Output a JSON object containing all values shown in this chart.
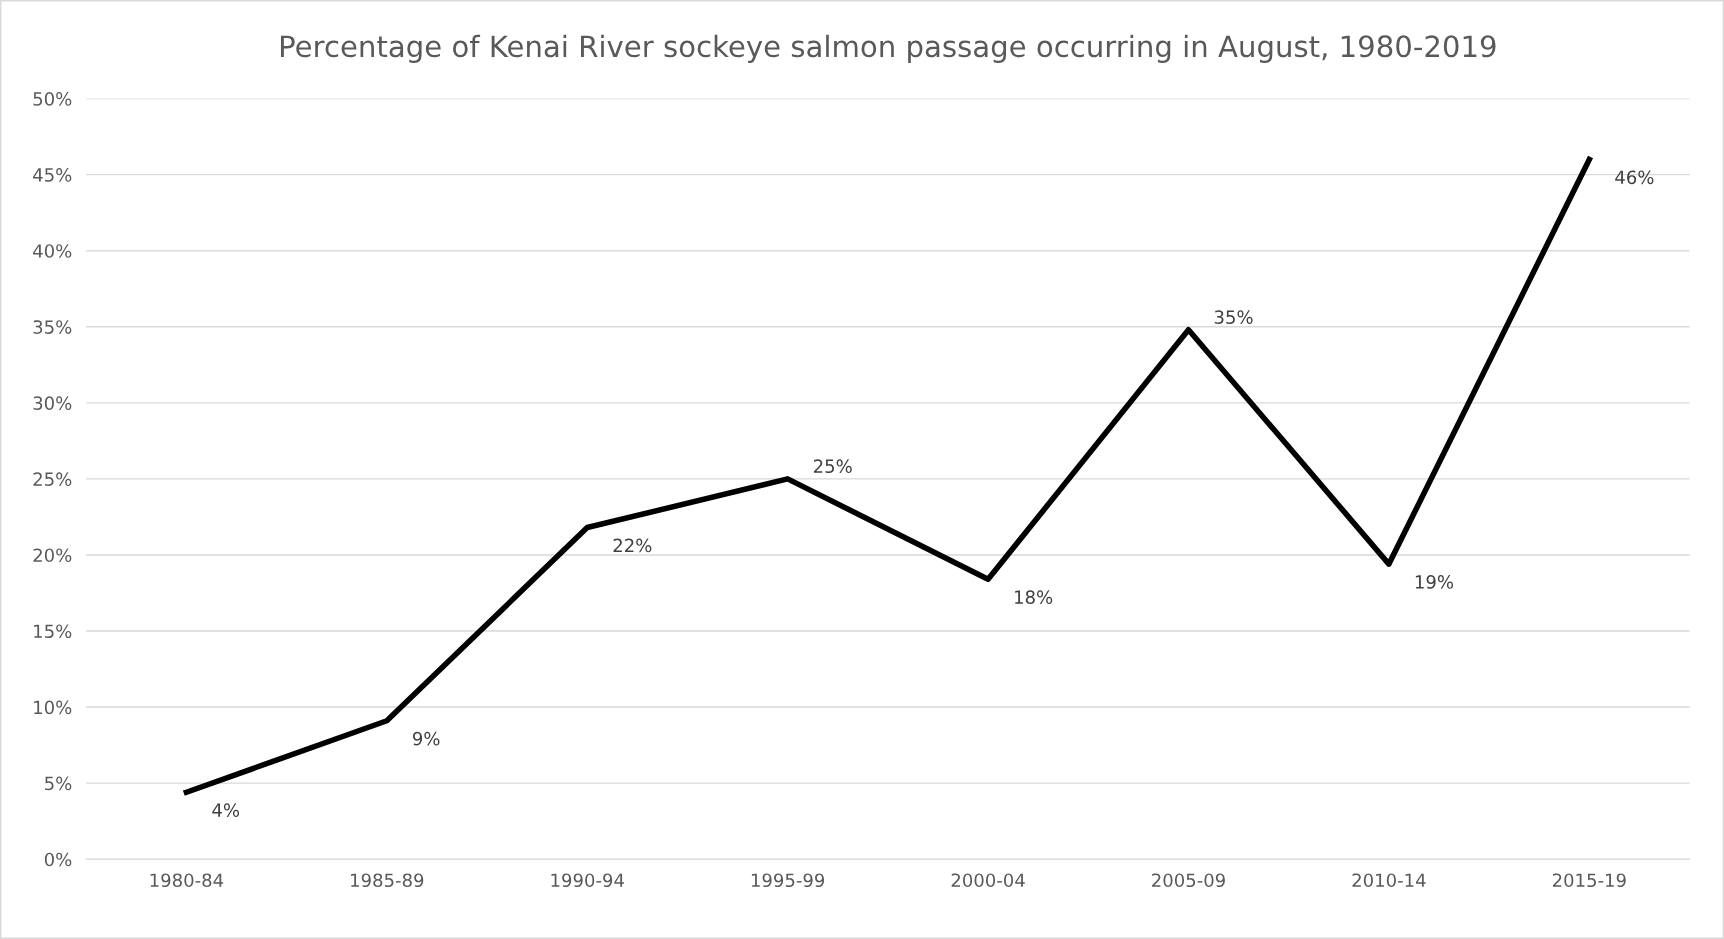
{
  "chart_data": {
    "type": "line",
    "title": "Percentage of Kenai River sockeye salmon passage occurring in August, 1980-2019",
    "categories": [
      "1980-84",
      "1985-89",
      "1990-94",
      "1995-99",
      "2000-04",
      "2005-09",
      "2010-14",
      "2015-19"
    ],
    "series": [
      {
        "color": "#000000",
        "values": [
          4.4,
          9.1,
          21.8,
          25.0,
          18.4,
          34.8,
          19.4,
          46.0
        ],
        "value_labels": [
          "4%",
          "9%",
          "22%",
          "25%",
          "18%",
          "35%",
          "19%",
          "46%"
        ]
      }
    ],
    "ylim": [
      0,
      50
    ],
    "yticks": [
      {
        "value": 0,
        "label": "0%"
      },
      {
        "value": 5,
        "label": "5%"
      },
      {
        "value": 10,
        "label": "10%"
      },
      {
        "value": 15,
        "label": "15%"
      },
      {
        "value": 20,
        "label": "20%"
      },
      {
        "value": 25,
        "label": "25%"
      },
      {
        "value": 30,
        "label": "30%"
      },
      {
        "value": 35,
        "label": "35%"
      },
      {
        "value": 40,
        "label": "40%"
      },
      {
        "value": 45,
        "label": "45%"
      },
      {
        "value": 50,
        "label": "50%"
      }
    ],
    "grid": "y",
    "legend": false,
    "marker": "none",
    "line_style": "solid"
  }
}
